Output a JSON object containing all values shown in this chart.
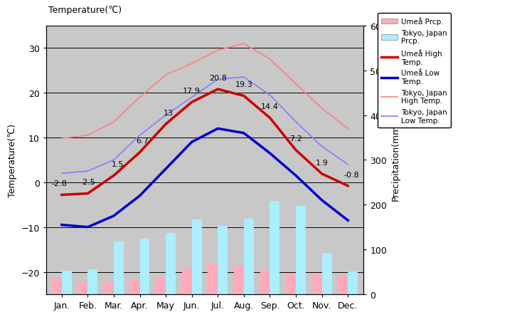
{
  "months": [
    "Jan.",
    "Feb.",
    "Mar.",
    "Apr.",
    "May",
    "Jun.",
    "Jul.",
    "Aug.",
    "Sep.",
    "Oct.",
    "Nov.",
    "Dec."
  ],
  "umea_high": [
    -2.8,
    -2.5,
    1.5,
    6.7,
    13.0,
    17.9,
    20.8,
    19.3,
    14.4,
    7.2,
    1.9,
    -0.8
  ],
  "umea_low": [
    -9.5,
    -10.0,
    -7.5,
    -3.0,
    3.0,
    9.0,
    12.0,
    11.0,
    6.5,
    1.5,
    -4.0,
    -8.5
  ],
  "tokyo_high": [
    9.8,
    10.5,
    13.5,
    19.0,
    24.0,
    26.5,
    29.5,
    31.0,
    27.5,
    22.0,
    16.5,
    12.0
  ],
  "tokyo_low": [
    2.0,
    2.5,
    5.0,
    10.5,
    15.0,
    19.0,
    23.0,
    23.5,
    19.5,
    13.5,
    8.0,
    4.0
  ],
  "umea_precip_mm": [
    38,
    28,
    28,
    33,
    37,
    57,
    68,
    64,
    54,
    47,
    44,
    43
  ],
  "tokyo_precip_mm": [
    52,
    56,
    117,
    124,
    137,
    167,
    153,
    168,
    209,
    197,
    93,
    51
  ],
  "ylim_left": [
    -25,
    35
  ],
  "ylim_right": [
    0,
    600
  ],
  "background_color": "#c8c8c8",
  "umea_high_color": "#cc0000",
  "umea_low_color": "#0000cc",
  "tokyo_high_color": "#ff8080",
  "tokyo_low_color": "#8080ff",
  "umea_precip_color": "#ffaabb",
  "tokyo_precip_color": "#aaeeff",
  "title_left": "Temperature(℃)",
  "title_right": "Precipitation(mm)",
  "annot_umea_high": {
    "0": [
      "-2.8",
      -2.8
    ],
    "1": [
      "-2.5",
      -2.5
    ],
    "2": [
      "1.5",
      1.5
    ],
    "3": [
      "6.7",
      6.7
    ],
    "4": [
      "13",
      13.0
    ],
    "5": [
      "17.9",
      17.9
    ],
    "6": [
      "20.8",
      20.8
    ],
    "7": [
      "19.3",
      19.3
    ],
    "8": [
      "14.4",
      14.4
    ],
    "9": [
      "7.2",
      7.2
    ],
    "10": [
      "1.9",
      1.9
    ],
    "11": [
      "-0.8",
      -0.8
    ]
  }
}
